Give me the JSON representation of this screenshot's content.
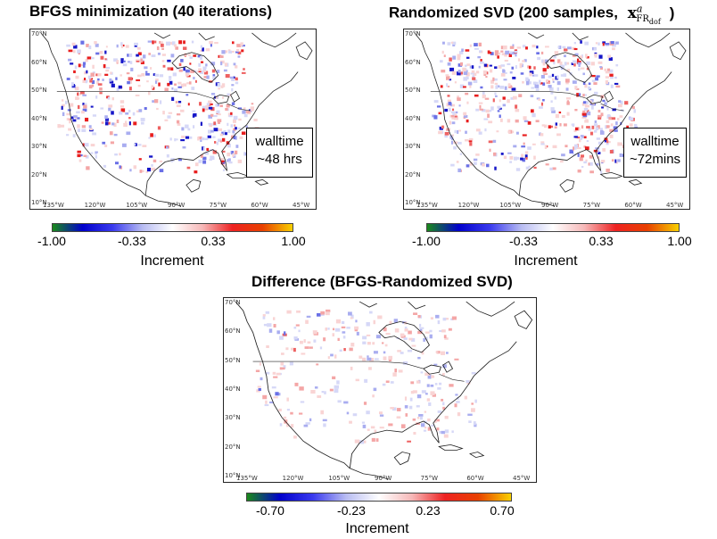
{
  "panels": {
    "bfgs": {
      "title": "BFGS minimization (40 iterations)",
      "walltime_line1": "walltime",
      "walltime_line2": "~48 hrs",
      "colorbar": {
        "ticks": [
          "-1.00",
          "-0.33",
          "0.33",
          "1.00"
        ],
        "label": "Increment"
      }
    },
    "svd": {
      "title_text": "Randomized SVD (200 samples,",
      "title_math": {
        "base": "x",
        "sup": "a",
        "sub": "FR",
        "subsub": "dof"
      },
      "title_close": ")",
      "walltime_line1": "walltime",
      "walltime_line2": "~72mins",
      "colorbar": {
        "ticks": [
          "-1.00",
          "-0.33",
          "0.33",
          "1.00"
        ],
        "label": "Increment"
      }
    },
    "diff": {
      "title": "Difference (BFGS-Randomized SVD)",
      "colorbar": {
        "ticks": [
          "-0.70",
          "-0.23",
          "0.23",
          "0.70"
        ],
        "label": "Increment"
      }
    }
  },
  "axes": {
    "lat_labels": [
      "70°N",
      "60°N",
      "50°N",
      "40°N",
      "30°N",
      "20°N",
      "10°N"
    ],
    "lon_labels": [
      "135°W",
      "120°W",
      "105°W",
      "90°W",
      "75°W",
      "60°W",
      "45°W"
    ]
  },
  "colors": {
    "colormap": [
      "#1a8a1a",
      "#0000cc",
      "#3a3aee",
      "#b8bcf2",
      "#ffffff",
      "#f6b8b8",
      "#ee2222",
      "#e84000",
      "#f8d000"
    ],
    "coastline": "#222222"
  }
}
